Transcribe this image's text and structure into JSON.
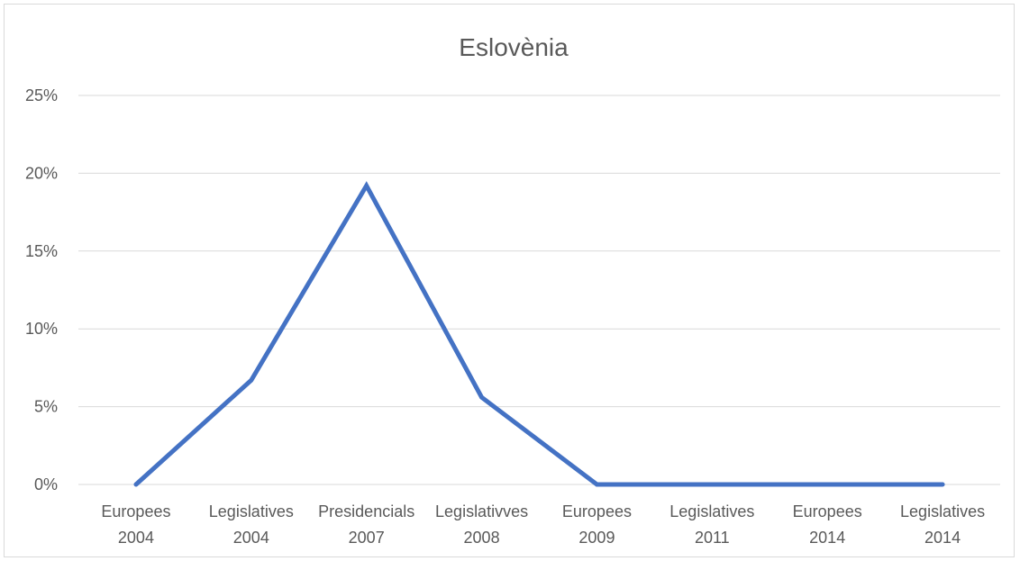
{
  "chart_data": {
    "type": "line",
    "title": "Eslovènia",
    "xlabel": "",
    "ylabel": "",
    "categories": [
      [
        "Europees",
        "2004"
      ],
      [
        "Legislatives",
        "2004"
      ],
      [
        "Presidencials",
        "2007"
      ],
      [
        "Legislativves",
        "2008"
      ],
      [
        "Europees",
        "2009"
      ],
      [
        "Legislatives",
        "2011"
      ],
      [
        "Europees",
        "2014"
      ],
      [
        "Legislatives",
        "2014"
      ]
    ],
    "series": [
      {
        "values": [
          0,
          6.7,
          19.2,
          5.6,
          0,
          0,
          0,
          0
        ],
        "color": "#4472c4"
      }
    ],
    "ylim": [
      0,
      25
    ],
    "yticks": [
      0,
      5,
      10,
      15,
      20,
      25
    ],
    "ytick_labels": [
      "0%",
      "5%",
      "10%",
      "15%",
      "20%",
      "25%"
    ],
    "grid": true,
    "legend": "none"
  }
}
